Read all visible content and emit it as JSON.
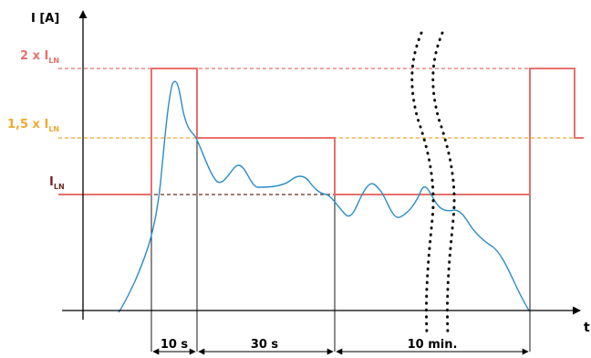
{
  "colors": {
    "axis": "#000000",
    "limit_red": "#e8706e",
    "limit_orange": "#f0a830",
    "level_dark": "#6b2a24",
    "current_blue": "#2a8cc8",
    "wave_dots": "#111111"
  },
  "axes": {
    "y_label": "I [A]",
    "x_label": "t"
  },
  "levels": {
    "two_x": {
      "prefix": "2 x I",
      "sub": "LN"
    },
    "one_five_x": {
      "prefix": "1,5 x I",
      "sub": "LN"
    },
    "nominal": {
      "prefix": "I",
      "sub": "LN"
    }
  },
  "intervals": [
    "10 s",
    "30 s",
    "10 min."
  ]
}
